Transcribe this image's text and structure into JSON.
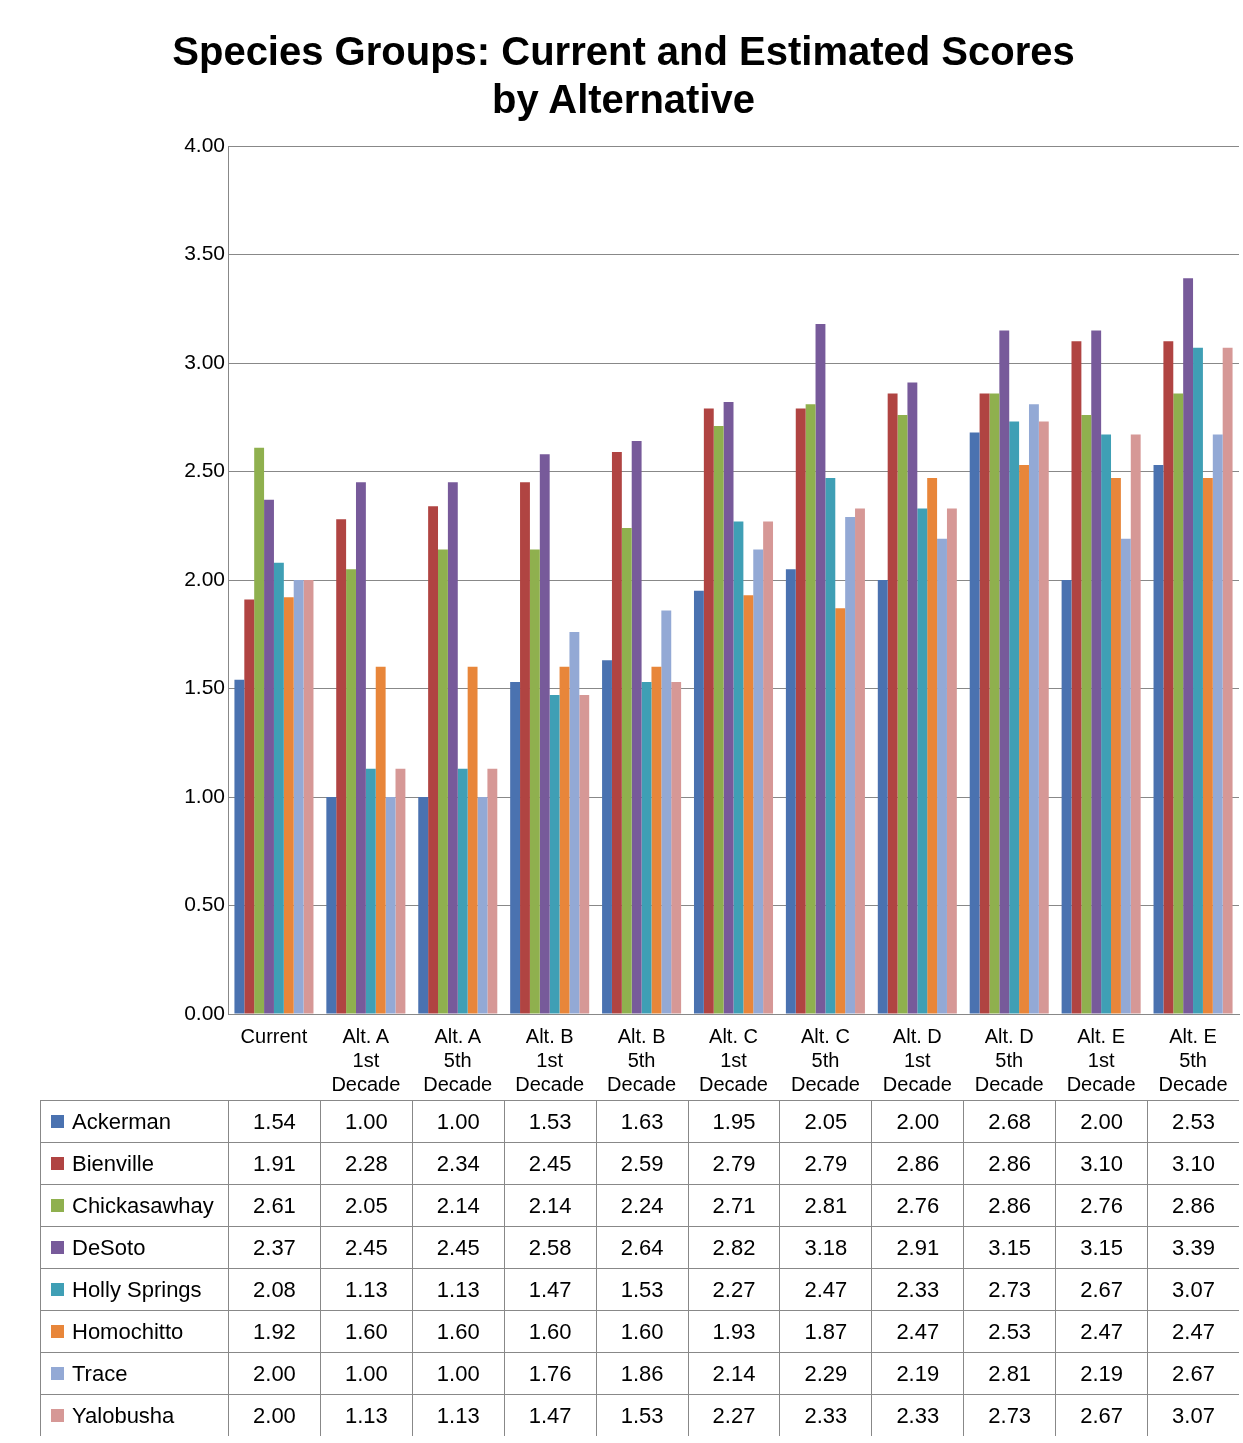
{
  "chart_data": {
    "type": "bar",
    "title": "Species Groups: Current and Estimated Scores by Alternative",
    "categories": [
      "Current",
      "Alt. A 1st Decade",
      "Alt. A 5th Decade",
      "Alt. B 1st Decade",
      "Alt. B 5th Decade",
      "Alt. C 1st Decade",
      "Alt. C 5th Decade",
      "Alt. D 1st Decade",
      "Alt. D 5th Decade",
      "Alt. E 1st Decade",
      "Alt. E 5th Decade"
    ],
    "series": [
      {
        "name": "Ackerman",
        "color": "#4a72b0",
        "values": [
          1.54,
          1.0,
          1.0,
          1.53,
          1.63,
          1.95,
          2.05,
          2.0,
          2.68,
          2.0,
          2.53
        ],
        "value_labels": [
          "1.54",
          "1.00",
          "1.00",
          "1.53",
          "1.63",
          "1.95",
          "2.05",
          "2.00",
          "2.68",
          "2.00",
          "2.53"
        ]
      },
      {
        "name": "Bienville",
        "color": "#b04442",
        "values": [
          1.91,
          2.28,
          2.34,
          2.45,
          2.59,
          2.79,
          2.79,
          2.86,
          2.86,
          3.1,
          3.1
        ],
        "value_labels": [
          "1.91",
          "2.28",
          "2.34",
          "2.45",
          "2.59",
          "2.79",
          "2.79",
          "2.86",
          "2.86",
          "3.10",
          "3.10"
        ]
      },
      {
        "name": "Chickasawhay",
        "color": "#8fb04e",
        "values": [
          2.61,
          2.05,
          2.14,
          2.14,
          2.24,
          2.71,
          2.81,
          2.76,
          2.86,
          2.76,
          2.86
        ],
        "value_labels": [
          "2.61",
          "2.05",
          "2.14",
          "2.14",
          "2.24",
          "2.71",
          "2.81",
          "2.76",
          "2.86",
          "2.76",
          "2.86"
        ]
      },
      {
        "name": "DeSoto",
        "color": "#775a9a",
        "values": [
          2.37,
          2.45,
          2.45,
          2.58,
          2.64,
          2.82,
          3.18,
          2.91,
          3.15,
          3.15,
          3.39
        ],
        "value_labels": [
          "2.37",
          "2.45",
          "2.45",
          "2.58",
          "2.64",
          "2.82",
          "3.18",
          "2.91",
          "3.15",
          "3.15",
          "3.39"
        ]
      },
      {
        "name": "Holly Springs",
        "color": "#3f9fb5",
        "values": [
          2.08,
          1.13,
          1.13,
          1.47,
          1.53,
          2.27,
          2.47,
          2.33,
          2.73,
          2.67,
          3.07
        ],
        "value_labels": [
          "2.08",
          "1.13",
          "1.13",
          "1.47",
          "1.53",
          "2.27",
          "2.47",
          "2.33",
          "2.73",
          "2.67",
          "3.07"
        ]
      },
      {
        "name": "Homochitto",
        "color": "#e8863a",
        "values": [
          1.92,
          1.6,
          1.6,
          1.6,
          1.6,
          1.93,
          1.87,
          2.47,
          2.53,
          2.47,
          2.47
        ],
        "value_labels": [
          "1.92",
          "1.60",
          "1.60",
          "1.60",
          "1.60",
          "1.93",
          "1.87",
          "2.47",
          "2.53",
          "2.47",
          "2.47"
        ]
      },
      {
        "name": "Trace",
        "color": "#93a9d5",
        "values": [
          2.0,
          1.0,
          1.0,
          1.76,
          1.86,
          2.14,
          2.29,
          2.19,
          2.81,
          2.19,
          2.67
        ],
        "value_labels": [
          "2.00",
          "1.00",
          "1.00",
          "1.76",
          "1.86",
          "2.14",
          "2.29",
          "2.19",
          "2.81",
          "2.19",
          "2.67"
        ]
      },
      {
        "name": "Yalobusha",
        "color": "#d69896",
        "values": [
          2.0,
          1.13,
          1.13,
          1.47,
          1.53,
          2.27,
          2.33,
          2.33,
          2.73,
          2.67,
          3.07
        ],
        "value_labels": [
          "2.00",
          "1.13",
          "1.13",
          "1.47",
          "1.53",
          "2.27",
          "2.33",
          "2.33",
          "2.73",
          "2.67",
          "3.07"
        ]
      }
    ],
    "ylim": [
      0,
      4
    ],
    "yticks": [
      {
        "value": 0,
        "label": "0.00"
      },
      {
        "value": 0.5,
        "label": "0.50"
      },
      {
        "value": 1,
        "label": "1.00"
      },
      {
        "value": 1.5,
        "label": "1.50"
      },
      {
        "value": 2,
        "label": "2.00"
      },
      {
        "value": 2.5,
        "label": "2.50"
      },
      {
        "value": 3,
        "label": "3.00"
      },
      {
        "value": 3.5,
        "label": "3.50"
      },
      {
        "value": 4,
        "label": "4.00"
      }
    ],
    "grid": "y",
    "legend": "bottom"
  }
}
